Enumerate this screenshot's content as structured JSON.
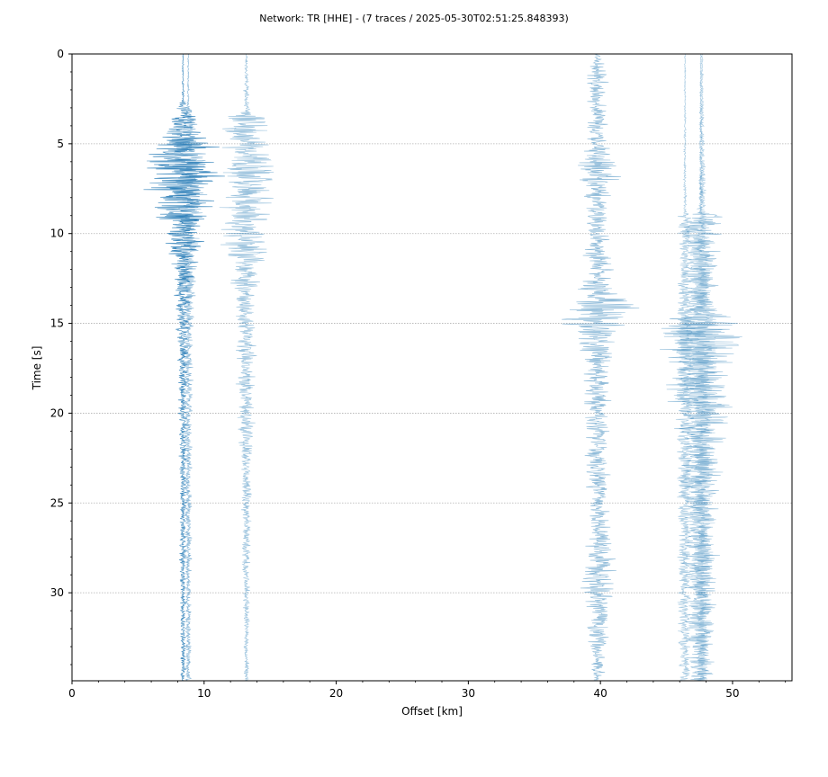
{
  "chart_data": {
    "type": "line",
    "title": "Network: TR [HHE] - (7 traces / 2025-05-30T02:51:25.848393)",
    "xlabel": "Offset [km]",
    "ylabel": "Time [s]",
    "xlim": [
      0,
      54.5
    ],
    "ylim": [
      34.9,
      0
    ],
    "y_inverted": true,
    "grid": "horizontal dotted at major y ticks",
    "x_ticks": [
      0,
      10,
      20,
      30,
      40,
      50
    ],
    "y_ticks": [
      0,
      5,
      10,
      15,
      20,
      25,
      30
    ],
    "trace_color": "#1f77b4",
    "series": [
      {
        "offset_km": 8.4,
        "opacity": 0.85,
        "envelope": [
          [
            0,
            0.05
          ],
          [
            2.5,
            0.1
          ],
          [
            3,
            0.6
          ],
          [
            4.5,
            1.8
          ],
          [
            5.5,
            3.2
          ],
          [
            7,
            3.8
          ],
          [
            8.5,
            2.6
          ],
          [
            10,
            2.0
          ],
          [
            12,
            1.0
          ],
          [
            14,
            0.7
          ],
          [
            17,
            0.45
          ],
          [
            22,
            0.35
          ],
          [
            28,
            0.3
          ],
          [
            34.9,
            0.25
          ]
        ]
      },
      {
        "offset_km": 8.8,
        "opacity": 0.55,
        "envelope": [
          [
            0,
            0.05
          ],
          [
            2.8,
            0.1
          ],
          [
            3.2,
            0.5
          ],
          [
            5,
            1.4
          ],
          [
            7,
            1.8
          ],
          [
            9,
            1.2
          ],
          [
            12,
            0.8
          ],
          [
            16,
            0.45
          ],
          [
            22,
            0.35
          ],
          [
            28,
            0.3
          ],
          [
            34.9,
            0.25
          ]
        ]
      },
      {
        "offset_km": 13.2,
        "opacity": 0.45,
        "envelope": [
          [
            0,
            0.05
          ],
          [
            1,
            0.2
          ],
          [
            3.2,
            0.3
          ],
          [
            3.6,
            2.2
          ],
          [
            5,
            2.0
          ],
          [
            6.5,
            2.6
          ],
          [
            8,
            2.4
          ],
          [
            10,
            2.2
          ],
          [
            12,
            1.6
          ],
          [
            14,
            1.0
          ],
          [
            16,
            0.9
          ],
          [
            20,
            0.8
          ],
          [
            23,
            0.5
          ],
          [
            28,
            0.35
          ],
          [
            34.9,
            0.2
          ]
        ]
      },
      {
        "offset_km": 39.8,
        "opacity": 0.5,
        "envelope": [
          [
            0,
            0.2
          ],
          [
            1,
            0.9
          ],
          [
            3,
            1.0
          ],
          [
            5,
            0.8
          ],
          [
            6.6,
            2.6
          ],
          [
            7.5,
            1.2
          ],
          [
            10,
            1.0
          ],
          [
            13.3,
            1.6
          ],
          [
            14.3,
            4.0
          ],
          [
            15.5,
            2.0
          ],
          [
            18,
            1.2
          ],
          [
            22,
            1.0
          ],
          [
            26,
            1.0
          ],
          [
            28.5,
            1.7
          ],
          [
            30.5,
            1.2
          ],
          [
            34.9,
            0.5
          ]
        ]
      },
      {
        "offset_km": 46.4,
        "opacity": 0.4,
        "envelope": [
          [
            0,
            0.05
          ],
          [
            8.8,
            0.15
          ],
          [
            9,
            0.6
          ],
          [
            12,
            0.5
          ],
          [
            16,
            0.9
          ],
          [
            25,
            0.7
          ],
          [
            34.9,
            0.5
          ]
        ]
      },
      {
        "offset_km": 47.6,
        "opacity": 0.45,
        "envelope": [
          [
            0,
            0.05
          ],
          [
            8.8,
            0.2
          ],
          [
            9,
            2.2
          ],
          [
            11,
            1.8
          ],
          [
            14,
            1.2
          ],
          [
            15,
            4.2
          ],
          [
            16,
            3.8
          ],
          [
            18,
            3.0
          ],
          [
            21,
            2.2
          ],
          [
            25,
            1.8
          ],
          [
            29,
            1.6
          ],
          [
            34.9,
            1.0
          ]
        ]
      },
      {
        "offset_km": 47.7,
        "opacity": 0.35,
        "envelope": [
          [
            0,
            0.05
          ],
          [
            9,
            0.4
          ],
          [
            15,
            1.6
          ],
          [
            20,
            1.2
          ],
          [
            34.9,
            0.8
          ]
        ]
      }
    ]
  }
}
